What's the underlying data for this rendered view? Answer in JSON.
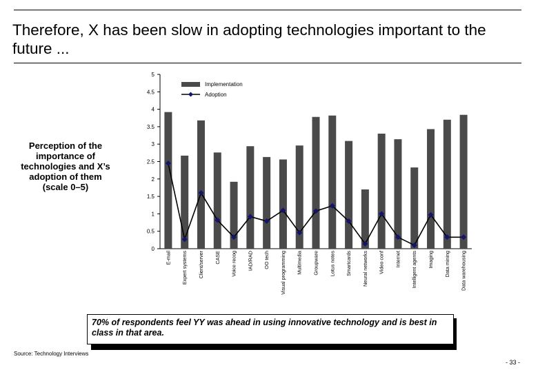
{
  "page": {
    "title": "Therefore, X has been slow in adopting technologies important to the future ...",
    "side_caption": "Perception of the importance of technologies and X’s adoption of them (scale 0–5)",
    "callout": "70% of respondents feel YY was ahead in using innovative technology and is best in class in that area.",
    "source": "Source: Technology Interviews",
    "page_number": "- 33 -"
  },
  "colors": {
    "bar": "#4a4a4a",
    "line": "#000000",
    "marker": "#14146e"
  },
  "chart_data": {
    "type": "bar",
    "ylim": [
      0,
      5
    ],
    "yticks": [
      "0",
      "0.5",
      "1",
      "1.5",
      "2",
      "2.5",
      "3",
      "3.5",
      "4",
      "4.5",
      "5"
    ],
    "grid": false,
    "legend_position": "top-right",
    "categories": [
      "E-mail",
      "Expert systems",
      "Client/server",
      "CASE",
      "Voice recog",
      "IAD/RAD",
      "OO tech",
      "Visual programming",
      "Multimedia",
      "Groupware",
      "Lotus notes",
      "Smartcards",
      "Neural networks",
      "Video conf",
      "Internet",
      "Intelligent agents",
      "Imaging",
      "Data mining",
      "Data warehousing"
    ],
    "series": [
      {
        "name": "Implementation",
        "type": "bar",
        "values": [
          3.92,
          2.67,
          3.68,
          2.76,
          1.92,
          2.94,
          2.63,
          2.56,
          2.96,
          3.78,
          3.82,
          3.09,
          1.7,
          3.3,
          3.14,
          2.33,
          3.43,
          3.7,
          3.84
        ]
      },
      {
        "name": "Adoption",
        "type": "line",
        "values": [
          2.45,
          0.27,
          1.6,
          0.82,
          0.33,
          0.92,
          0.79,
          1.1,
          0.46,
          1.08,
          1.23,
          0.79,
          0.14,
          1.0,
          0.33,
          0.1,
          0.97,
          0.33,
          0.33
        ]
      }
    ]
  }
}
